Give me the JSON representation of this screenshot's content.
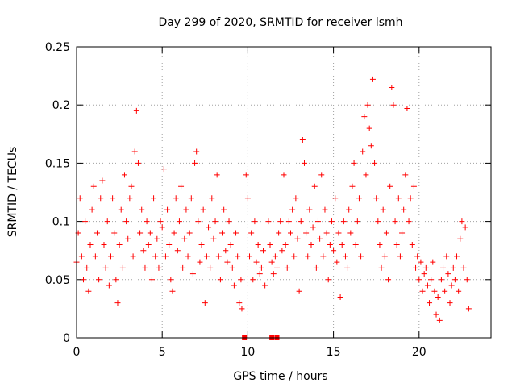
{
  "chart_data": {
    "type": "scatter",
    "title": "Day 299 of 2020, SRMTID for receiver lsmh",
    "xlabel": "GPS time / hours",
    "ylabel": "SRMTID / TECUs",
    "xlim": [
      0,
      24.2
    ],
    "ylim": [
      0,
      0.25
    ],
    "xticks": [
      0,
      5,
      10,
      15,
      20
    ],
    "xtick_labels": [
      "0",
      "5",
      "10",
      "15",
      "20"
    ],
    "yticks": [
      0,
      0.05,
      0.1,
      0.15,
      0.2,
      0.25
    ],
    "ytick_labels": [
      "0",
      "0.05",
      "0.1",
      "0.15",
      "0.2",
      "0.25"
    ],
    "grid": true,
    "marker": "+",
    "color": "#ff0000",
    "series": [
      {
        "name": "SRMTID",
        "note": "dense point cloud; representative sample of ~5-minute interval values",
        "points": [
          [
            0.0,
            0.065
          ],
          [
            0.1,
            0.09
          ],
          [
            0.2,
            0.12
          ],
          [
            0.3,
            0.07
          ],
          [
            0.4,
            0.05
          ],
          [
            0.5,
            0.1
          ],
          [
            0.6,
            0.06
          ],
          [
            0.7,
            0.04
          ],
          [
            0.8,
            0.08
          ],
          [
            0.9,
            0.11
          ],
          [
            1.0,
            0.13
          ],
          [
            1.1,
            0.07
          ],
          [
            1.2,
            0.09
          ],
          [
            1.3,
            0.05
          ],
          [
            1.4,
            0.12
          ],
          [
            1.5,
            0.135
          ],
          [
            1.6,
            0.08
          ],
          [
            1.7,
            0.06
          ],
          [
            1.8,
            0.1
          ],
          [
            1.9,
            0.045
          ],
          [
            2.0,
            0.07
          ],
          [
            2.1,
            0.12
          ],
          [
            2.2,
            0.09
          ],
          [
            2.3,
            0.05
          ],
          [
            2.4,
            0.03
          ],
          [
            2.5,
            0.08
          ],
          [
            2.6,
            0.11
          ],
          [
            2.7,
            0.06
          ],
          [
            2.8,
            0.14
          ],
          [
            2.9,
            0.1
          ],
          [
            3.0,
            0.085
          ],
          [
            3.1,
            0.12
          ],
          [
            3.2,
            0.13
          ],
          [
            3.3,
            0.07
          ],
          [
            3.4,
            0.16
          ],
          [
            3.5,
            0.195
          ],
          [
            3.6,
            0.15
          ],
          [
            3.7,
            0.09
          ],
          [
            3.8,
            0.11
          ],
          [
            3.9,
            0.075
          ],
          [
            4.0,
            0.06
          ],
          [
            4.1,
            0.1
          ],
          [
            4.2,
            0.08
          ],
          [
            4.3,
            0.09
          ],
          [
            4.4,
            0.05
          ],
          [
            4.5,
            0.12
          ],
          [
            4.6,
            0.07
          ],
          [
            4.7,
            0.085
          ],
          [
            4.8,
            0.06
          ],
          [
            4.9,
            0.1
          ],
          [
            5.0,
            0.095
          ],
          [
            5.1,
            0.145
          ],
          [
            5.2,
            0.07
          ],
          [
            5.3,
            0.11
          ],
          [
            5.4,
            0.08
          ],
          [
            5.5,
            0.05
          ],
          [
            5.6,
            0.04
          ],
          [
            5.7,
            0.09
          ],
          [
            5.8,
            0.12
          ],
          [
            5.9,
            0.075
          ],
          [
            6.0,
            0.1
          ],
          [
            6.1,
            0.13
          ],
          [
            6.2,
            0.06
          ],
          [
            6.3,
            0.085
          ],
          [
            6.4,
            0.11
          ],
          [
            6.5,
            0.07
          ],
          [
            6.6,
            0.09
          ],
          [
            6.7,
            0.12
          ],
          [
            6.8,
            0.055
          ],
          [
            6.9,
            0.15
          ],
          [
            7.0,
            0.16
          ],
          [
            7.1,
            0.1
          ],
          [
            7.2,
            0.065
          ],
          [
            7.3,
            0.08
          ],
          [
            7.4,
            0.11
          ],
          [
            7.5,
            0.03
          ],
          [
            7.6,
            0.07
          ],
          [
            7.7,
            0.095
          ],
          [
            7.8,
            0.06
          ],
          [
            7.9,
            0.12
          ],
          [
            8.0,
            0.085
          ],
          [
            8.1,
            0.1
          ],
          [
            8.2,
            0.14
          ],
          [
            8.3,
            0.07
          ],
          [
            8.4,
            0.05
          ],
          [
            8.5,
            0.09
          ],
          [
            8.6,
            0.11
          ],
          [
            8.7,
            0.075
          ],
          [
            8.8,
            0.065
          ],
          [
            8.9,
            0.1
          ],
          [
            9.0,
            0.08
          ],
          [
            9.1,
            0.06
          ],
          [
            9.2,
            0.045
          ],
          [
            9.3,
            0.09
          ],
          [
            9.4,
            0.07
          ],
          [
            9.5,
            0.03
          ],
          [
            9.6,
            0.05
          ],
          [
            9.65,
            0.025
          ],
          [
            9.9,
            0.14
          ],
          [
            10.0,
            0.12
          ],
          [
            10.1,
            0.07
          ],
          [
            10.2,
            0.09
          ],
          [
            10.3,
            0.05
          ],
          [
            10.4,
            0.1
          ],
          [
            10.5,
            0.065
          ],
          [
            10.6,
            0.08
          ],
          [
            10.7,
            0.055
          ],
          [
            10.8,
            0.06
          ],
          [
            10.9,
            0.075
          ],
          [
            11.0,
            0.045
          ],
          [
            11.2,
            0.1
          ],
          [
            11.3,
            0.08
          ],
          [
            11.4,
            0.065
          ],
          [
            11.5,
            0.055
          ],
          [
            11.6,
            0.07
          ],
          [
            11.7,
            0.06
          ],
          [
            11.8,
            0.09
          ],
          [
            11.9,
            0.1
          ],
          [
            12.0,
            0.075
          ],
          [
            12.1,
            0.14
          ],
          [
            12.2,
            0.08
          ],
          [
            12.3,
            0.06
          ],
          [
            12.4,
            0.1
          ],
          [
            12.5,
            0.09
          ],
          [
            12.6,
            0.11
          ],
          [
            12.7,
            0.07
          ],
          [
            12.8,
            0.12
          ],
          [
            12.9,
            0.085
          ],
          [
            13.0,
            0.04
          ],
          [
            13.1,
            0.1
          ],
          [
            13.2,
            0.17
          ],
          [
            13.3,
            0.15
          ],
          [
            13.4,
            0.09
          ],
          [
            13.5,
            0.07
          ],
          [
            13.6,
            0.11
          ],
          [
            13.7,
            0.08
          ],
          [
            13.8,
            0.095
          ],
          [
            13.9,
            0.13
          ],
          [
            14.0,
            0.06
          ],
          [
            14.1,
            0.1
          ],
          [
            14.2,
            0.085
          ],
          [
            14.3,
            0.14
          ],
          [
            14.4,
            0.07
          ],
          [
            14.5,
            0.11
          ],
          [
            14.6,
            0.09
          ],
          [
            14.7,
            0.05
          ],
          [
            14.8,
            0.08
          ],
          [
            14.9,
            0.1
          ],
          [
            15.0,
            0.075
          ],
          [
            15.1,
            0.12
          ],
          [
            15.2,
            0.065
          ],
          [
            15.3,
            0.09
          ],
          [
            15.4,
            0.035
          ],
          [
            15.5,
            0.08
          ],
          [
            15.6,
            0.1
          ],
          [
            15.7,
            0.07
          ],
          [
            15.8,
            0.06
          ],
          [
            15.9,
            0.11
          ],
          [
            16.0,
            0.09
          ],
          [
            16.1,
            0.13
          ],
          [
            16.2,
            0.15
          ],
          [
            16.3,
            0.08
          ],
          [
            16.4,
            0.1
          ],
          [
            16.5,
            0.12
          ],
          [
            16.6,
            0.07
          ],
          [
            16.7,
            0.16
          ],
          [
            16.8,
            0.19
          ],
          [
            16.9,
            0.14
          ],
          [
            17.0,
            0.2
          ],
          [
            17.1,
            0.18
          ],
          [
            17.2,
            0.165
          ],
          [
            17.3,
            0.222
          ],
          [
            17.4,
            0.15
          ],
          [
            17.5,
            0.12
          ],
          [
            17.6,
            0.1
          ],
          [
            17.7,
            0.08
          ],
          [
            17.8,
            0.06
          ],
          [
            17.9,
            0.11
          ],
          [
            18.0,
            0.07
          ],
          [
            18.1,
            0.09
          ],
          [
            18.2,
            0.05
          ],
          [
            18.3,
            0.13
          ],
          [
            18.4,
            0.215
          ],
          [
            18.5,
            0.2
          ],
          [
            18.6,
            0.1
          ],
          [
            18.7,
            0.08
          ],
          [
            18.8,
            0.12
          ],
          [
            18.9,
            0.07
          ],
          [
            19.0,
            0.09
          ],
          [
            19.1,
            0.11
          ],
          [
            19.2,
            0.14
          ],
          [
            19.3,
            0.197
          ],
          [
            19.4,
            0.1
          ],
          [
            19.5,
            0.12
          ],
          [
            19.6,
            0.08
          ],
          [
            19.7,
            0.13
          ],
          [
            19.8,
            0.06
          ],
          [
            19.9,
            0.07
          ],
          [
            20.0,
            0.05
          ],
          [
            20.1,
            0.065
          ],
          [
            20.2,
            0.04
          ],
          [
            20.3,
            0.055
          ],
          [
            20.4,
            0.06
          ],
          [
            20.5,
            0.045
          ],
          [
            20.6,
            0.03
          ],
          [
            20.7,
            0.05
          ],
          [
            20.8,
            0.065
          ],
          [
            20.9,
            0.04
          ],
          [
            21.0,
            0.02
          ],
          [
            21.1,
            0.035
          ],
          [
            21.2,
            0.015
          ],
          [
            21.3,
            0.05
          ],
          [
            21.4,
            0.06
          ],
          [
            21.5,
            0.04
          ],
          [
            21.6,
            0.07
          ],
          [
            21.7,
            0.055
          ],
          [
            21.8,
            0.03
          ],
          [
            21.9,
            0.045
          ],
          [
            22.0,
            0.06
          ],
          [
            22.1,
            0.05
          ],
          [
            22.2,
            0.07
          ],
          [
            22.3,
            0.04
          ],
          [
            22.4,
            0.085
          ],
          [
            22.5,
            0.1
          ],
          [
            22.6,
            0.06
          ],
          [
            22.7,
            0.095
          ],
          [
            22.8,
            0.05
          ],
          [
            22.9,
            0.025
          ]
        ]
      },
      {
        "name": "zero-value markers",
        "marker": "square",
        "points": [
          [
            9.8,
            0.0
          ],
          [
            11.4,
            0.0
          ],
          [
            11.7,
            0.0
          ]
        ]
      }
    ]
  }
}
